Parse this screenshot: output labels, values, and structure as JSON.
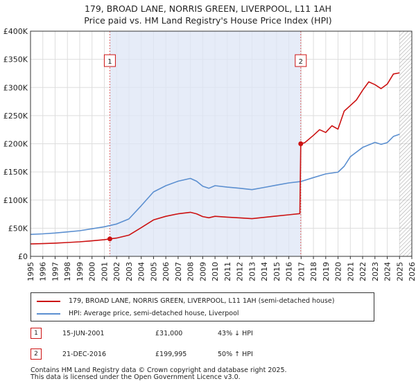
{
  "chart_data": {
    "type": "line",
    "title": "179, BROAD LANE, NORRIS GREEN, LIVERPOOL, L11 1AH",
    "subtitle": "Price paid vs. HM Land Registry's House Price Index (HPI)",
    "x_ticks": [
      "1995",
      "1996",
      "1997",
      "1998",
      "1999",
      "2000",
      "2001",
      "2002",
      "2003",
      "2004",
      "2005",
      "2006",
      "2007",
      "2008",
      "2009",
      "2010",
      "2011",
      "2012",
      "2013",
      "2014",
      "2015",
      "2016",
      "2017",
      "2018",
      "2019",
      "2020",
      "2021",
      "2022",
      "2023",
      "2024",
      "2025",
      "2026"
    ],
    "y_ticks": [
      "£0",
      "£50K",
      "£100K",
      "£150K",
      "£200K",
      "£250K",
      "£300K",
      "£350K",
      "£400K"
    ],
    "xlim": [
      1995,
      2026
    ],
    "ylim": [
      0,
      400000
    ],
    "grid": true,
    "colors": {
      "property": "#cc1111",
      "hpi": "#5b8fd0",
      "shade": "#dde6f5",
      "marker_line": "#e06666"
    },
    "series": [
      {
        "name": "179, BROAD LANE, NORRIS GREEN, LIVERPOOL, L11 1AH (semi-detached house)",
        "color": "#cc1111",
        "points": [
          [
            1995.0,
            22000
          ],
          [
            1996.0,
            22600
          ],
          [
            1997.0,
            23500
          ],
          [
            1998.0,
            24600
          ],
          [
            1999.0,
            25800
          ],
          [
            2000.0,
            27600
          ],
          [
            2001.0,
            29700
          ],
          [
            2001.45,
            31000
          ],
          [
            2002.0,
            32500
          ],
          [
            2003.0,
            37600
          ],
          [
            2004.0,
            50900
          ],
          [
            2005.0,
            64800
          ],
          [
            2006.0,
            71100
          ],
          [
            2007.0,
            75600
          ],
          [
            2008.0,
            78300
          ],
          [
            2008.5,
            75600
          ],
          [
            2009.0,
            70600
          ],
          [
            2009.5,
            68500
          ],
          [
            2010.0,
            71100
          ],
          [
            2011.0,
            69700
          ],
          [
            2012.0,
            68400
          ],
          [
            2013.0,
            67000
          ],
          [
            2014.0,
            69300
          ],
          [
            2015.0,
            71600
          ],
          [
            2016.0,
            73900
          ],
          [
            2016.9,
            76000
          ],
          [
            2016.97,
            199995
          ],
          [
            2017.3,
            202000
          ],
          [
            2018.0,
            215000
          ],
          [
            2018.5,
            225000
          ],
          [
            2019.0,
            220000
          ],
          [
            2019.5,
            232000
          ],
          [
            2020.0,
            226000
          ],
          [
            2020.5,
            258000
          ],
          [
            2021.0,
            268000
          ],
          [
            2021.5,
            278000
          ],
          [
            2022.0,
            295000
          ],
          [
            2022.5,
            310000
          ],
          [
            2023.0,
            305000
          ],
          [
            2023.5,
            298000
          ],
          [
            2024.0,
            306000
          ],
          [
            2024.5,
            324000
          ],
          [
            2025.0,
            326000
          ]
        ]
      },
      {
        "name": "HPI: Average price, semi-detached house, Liverpool",
        "color": "#5b8fd0",
        "points": [
          [
            1995.0,
            39000
          ],
          [
            1996.0,
            40000
          ],
          [
            1997.0,
            41500
          ],
          [
            1998.0,
            43500
          ],
          [
            1999.0,
            45500
          ],
          [
            2000.0,
            49000
          ],
          [
            2001.0,
            52500
          ],
          [
            2002.0,
            57500
          ],
          [
            2003.0,
            66500
          ],
          [
            2004.0,
            90000
          ],
          [
            2005.0,
            114500
          ],
          [
            2006.0,
            125500
          ],
          [
            2007.0,
            133500
          ],
          [
            2008.0,
            138500
          ],
          [
            2008.5,
            133500
          ],
          [
            2009.0,
            124500
          ],
          [
            2009.5,
            121000
          ],
          [
            2010.0,
            125500
          ],
          [
            2011.0,
            123000
          ],
          [
            2012.0,
            121000
          ],
          [
            2013.0,
            118500
          ],
          [
            2014.0,
            122500
          ],
          [
            2015.0,
            126500
          ],
          [
            2016.0,
            130500
          ],
          [
            2017.0,
            133000
          ],
          [
            2018.0,
            140000
          ],
          [
            2019.0,
            146500
          ],
          [
            2020.0,
            149500
          ],
          [
            2020.5,
            160000
          ],
          [
            2021.0,
            177000
          ],
          [
            2022.0,
            193500
          ],
          [
            2023.0,
            202500
          ],
          [
            2023.5,
            199000
          ],
          [
            2024.0,
            202000
          ],
          [
            2024.5,
            213000
          ],
          [
            2025.0,
            217000
          ]
        ]
      }
    ],
    "sales": [
      {
        "label": "1",
        "date": "15-JUN-2001",
        "price": "£31,000",
        "hpi": "43% ↓ HPI",
        "x": 2001.45,
        "y": 31000
      },
      {
        "label": "2",
        "date": "21-DEC-2016",
        "price": "£199,995",
        "hpi": "50% ↑ HPI",
        "x": 2016.97,
        "y": 199995
      }
    ],
    "shaded_period": [
      2001.45,
      2016.97
    ],
    "forecast_from": 2025.0
  },
  "legend": {
    "property": "179, BROAD LANE, NORRIS GREEN, LIVERPOOL, L11 1AH (semi-detached house)",
    "hpi": "HPI: Average price, semi-detached house, Liverpool"
  },
  "footer": {
    "line1": "Contains HM Land Registry data © Crown copyright and database right 2025.",
    "line2": "This data is licensed under the Open Government Licence v3.0."
  }
}
